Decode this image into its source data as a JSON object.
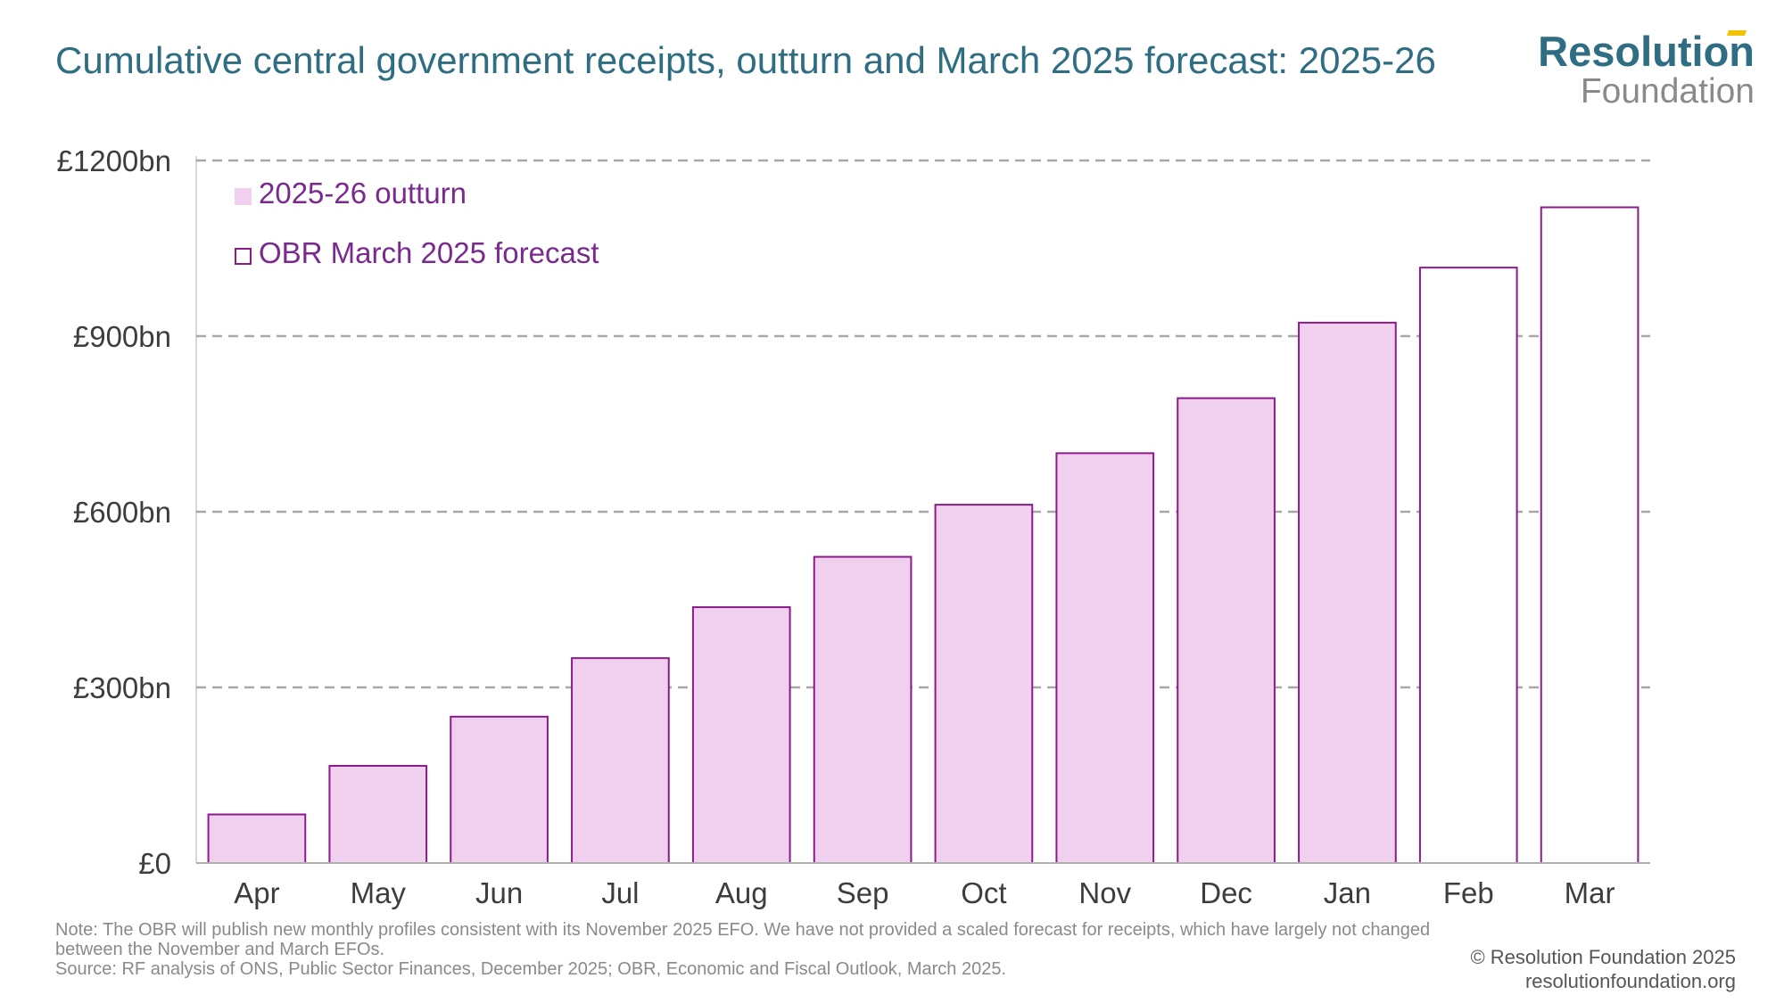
{
  "header": {
    "title": "Cumulative central government receipts, outturn and March 2025 forecast: 2025-26"
  },
  "logo": {
    "word1": "Resolution",
    "word2": "Foundation"
  },
  "colors": {
    "title": "#2e6d82",
    "bar_border": "#8b1a8b",
    "bar_fill": "#f1cfee",
    "legend_text": "#7a2a8e",
    "grid": "#a8a8a8",
    "axis_text": "#3d3d3d"
  },
  "chart_data": {
    "type": "bar",
    "categories": [
      "Apr",
      "May",
      "Jun",
      "Jul",
      "Aug",
      "Sep",
      "Oct",
      "Nov",
      "Dec",
      "Jan",
      "Feb",
      "Mar"
    ],
    "values": [
      83,
      166,
      250,
      350,
      437,
      523,
      612,
      700,
      794,
      923,
      1017,
      1120
    ],
    "is_forecast": [
      false,
      false,
      false,
      false,
      false,
      false,
      false,
      false,
      false,
      false,
      true,
      true
    ],
    "ylim": [
      0,
      1200
    ],
    "yticks": [
      0,
      300,
      600,
      900,
      1200
    ],
    "ytick_labels": [
      "£0",
      "£300bn",
      "£600bn",
      "£900bn",
      "£1200bn"
    ],
    "legend": [
      {
        "label": "2025-26 outturn",
        "style": "filled"
      },
      {
        "label": "OBR March 2025 forecast",
        "style": "outline"
      }
    ],
    "legend_position": "top-left",
    "grid": "horizontal dashed",
    "xlabel": "",
    "ylabel": ""
  },
  "footer": {
    "note": "Note: The OBR will publish new monthly profiles consistent with its November 2025 EFO. We have not provided a scaled forecast for receipts, which have largely not changed between the November and March EFOs.",
    "source": "Source: RF analysis of ONS, Public Sector Finances, December 2025; OBR, Economic and Fiscal Outlook, March 2025.",
    "copyright": "© Resolution Foundation 2025",
    "website": "resolutionfoundation.org"
  }
}
